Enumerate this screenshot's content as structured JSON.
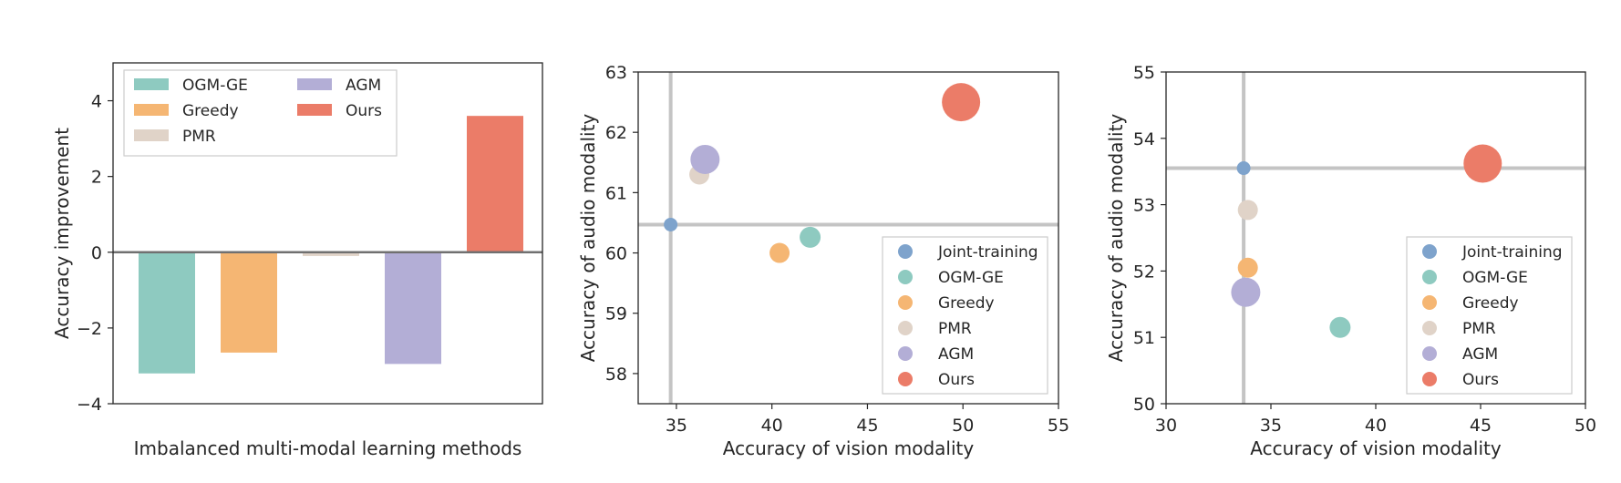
{
  "colors": {
    "Joint-training": "#7ea3cc",
    "OGM-GE": "#8ecac0",
    "Greedy": "#f5b673",
    "PMR": "#e0d3c8",
    "AGM": "#b3aed6",
    "Ours": "#eb7c68",
    "reference_line": "#c4c4c4",
    "zero_line": "#707070",
    "frame": "#262626"
  },
  "chart_data": [
    {
      "type": "bar",
      "xlabel": "Imbalanced multi-modal learning methods",
      "ylabel": "Accuracy improvement",
      "ylim": [
        -4,
        5
      ],
      "yticks": [
        -4,
        -2,
        0,
        2,
        4
      ],
      "grid": false,
      "legend_position": "top-left",
      "legend_columns": 2,
      "categories": [
        "OGM-GE",
        "Greedy",
        "PMR",
        "AGM",
        "Ours"
      ],
      "values": [
        -3.2,
        -2.65,
        -0.1,
        -2.95,
        3.6
      ]
    },
    {
      "type": "scatter",
      "xlabel": "Accuracy of vision modality",
      "ylabel": "Accuracy of audio modality",
      "xlim": [
        33,
        55
      ],
      "ylim": [
        57.5,
        63
      ],
      "xticks": [
        35,
        40,
        45,
        50,
        55
      ],
      "yticks": [
        58,
        59,
        60,
        61,
        62,
        63
      ],
      "grid": false,
      "legend_position": "bottom-right",
      "reference_lines": {
        "x": 34.7,
        "y": 60.47
      },
      "points": [
        {
          "name": "Joint-training",
          "x": 34.7,
          "y": 60.47
        },
        {
          "name": "OGM-GE",
          "x": 42.0,
          "y": 60.26
        },
        {
          "name": "Greedy",
          "x": 40.4,
          "y": 60.0
        },
        {
          "name": "PMR",
          "x": 36.2,
          "y": 61.3
        },
        {
          "name": "AGM",
          "x": 36.5,
          "y": 61.55
        },
        {
          "name": "Ours",
          "x": 49.9,
          "y": 62.5
        }
      ]
    },
    {
      "type": "scatter",
      "xlabel": "Accuracy of vision modality",
      "ylabel": "Accuracy of audio modality",
      "xlim": [
        30,
        50
      ],
      "ylim": [
        50,
        55
      ],
      "xticks": [
        30,
        35,
        40,
        45,
        50
      ],
      "yticks": [
        50,
        51,
        52,
        53,
        54,
        55
      ],
      "grid": false,
      "legend_position": "bottom-right",
      "reference_lines": {
        "x": 33.7,
        "y": 53.55
      },
      "points": [
        {
          "name": "Joint-training",
          "x": 33.7,
          "y": 53.55
        },
        {
          "name": "OGM-GE",
          "x": 38.3,
          "y": 51.15
        },
        {
          "name": "Greedy",
          "x": 33.9,
          "y": 52.05
        },
        {
          "name": "PMR",
          "x": 33.9,
          "y": 52.92
        },
        {
          "name": "AGM",
          "x": 33.8,
          "y": 51.68
        },
        {
          "name": "Ours",
          "x": 45.1,
          "y": 53.62
        }
      ]
    }
  ]
}
